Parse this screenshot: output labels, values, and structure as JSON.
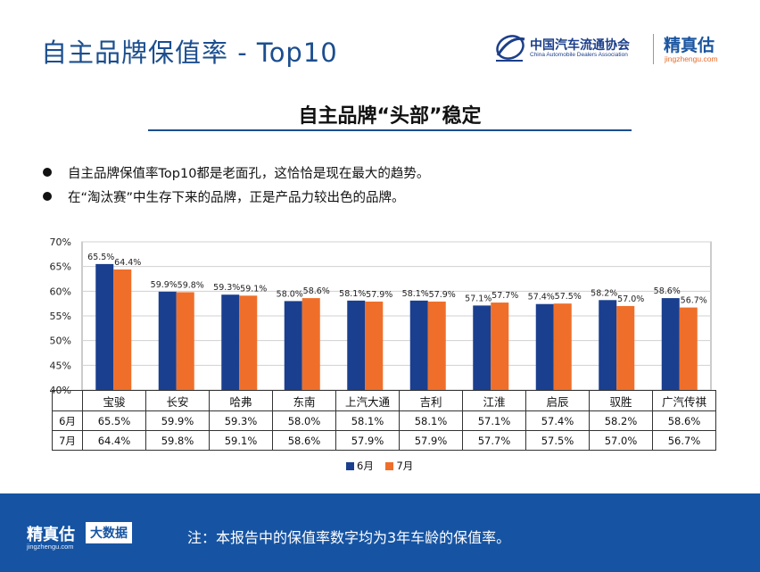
{
  "header": {
    "title": "自主品牌保值率 - Top10",
    "cada_name": "中国汽车流通协会",
    "cada_en": "China Automobile Dealers Association",
    "jzg_name": "精真估",
    "jzg_url": "jingzhengu.com"
  },
  "section": {
    "subtitle": "自主品牌“头部”稳定",
    "bullets": [
      "自主品牌保值率Top10都是老面孔，这恰恰是现在最大的趋势。",
      "在“淘汰赛”中生存下来的品牌，正是产品力较出色的品牌。"
    ]
  },
  "chart_data": {
    "type": "bar",
    "categories": [
      "宝骏",
      "长安",
      "哈弗",
      "东南",
      "上汽大通",
      "吉利",
      "江淮",
      "启辰",
      "驭胜",
      "广汽传祺"
    ],
    "series": [
      {
        "name": "6月",
        "values": [
          65.5,
          59.9,
          59.3,
          58.0,
          58.1,
          58.1,
          57.1,
          57.4,
          58.2,
          58.6
        ],
        "color": "#1a3f8f"
      },
      {
        "name": "7月",
        "values": [
          64.4,
          59.8,
          59.1,
          58.6,
          57.9,
          57.9,
          57.7,
          57.5,
          57.0,
          56.7
        ],
        "color": "#ef6f2a"
      }
    ],
    "value_labels_6": [
      "65.5%",
      "59.9%",
      "59.3%",
      "58.0%",
      "58.1%",
      "58.1%",
      "57.1%",
      "57.4%",
      "58.2%",
      "58.6%"
    ],
    "value_labels_7": [
      "64.4%",
      "59.8%",
      "59.1%",
      "58.6%",
      "57.9%",
      "57.9%",
      "57.7%",
      "57.5%",
      "57.0%",
      "56.7%"
    ],
    "yticks": [
      40,
      45,
      50,
      55,
      60,
      65,
      70
    ],
    "ytick_labels": [
      "40%",
      "45%",
      "50%",
      "55%",
      "60%",
      "65%",
      "70%"
    ],
    "ylim": [
      40,
      70
    ],
    "grid": true,
    "legend_position": "bottom"
  },
  "table": {
    "row_labels": [
      "6月",
      "7月"
    ]
  },
  "footer": {
    "logo": "精真估",
    "url": "jingzhengu.com",
    "badge": "大数据",
    "note": "注：本报告中的保值率数字均为3年车龄的保值率。"
  }
}
